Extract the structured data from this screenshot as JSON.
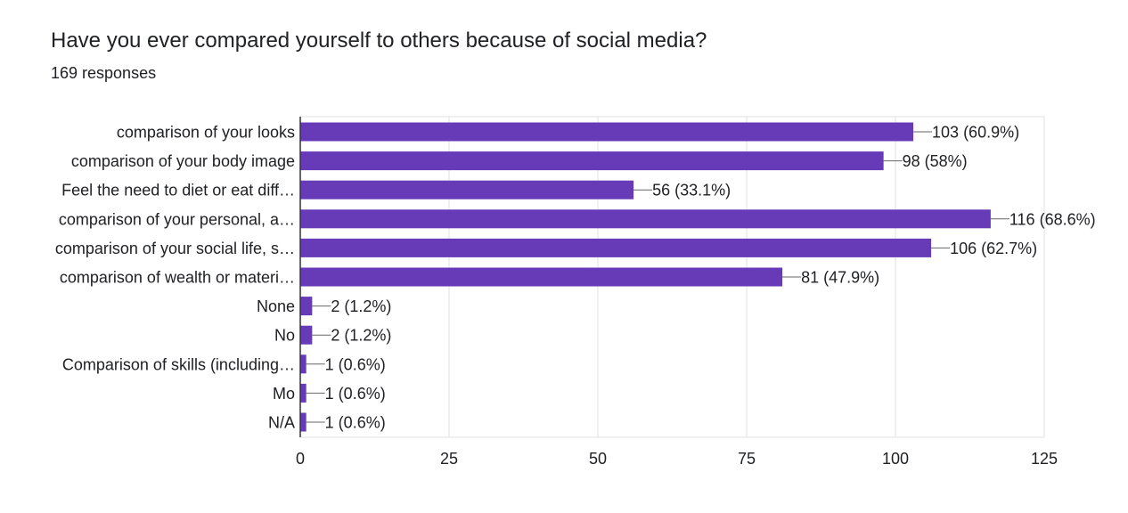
{
  "question": {
    "title": "Have you ever compared yourself to others because of social media?",
    "responses": "169 responses"
  },
  "colors": {
    "bar": "#673ab7",
    "grid": "#e0e0e0",
    "axis": "#333333",
    "connector": "#666666",
    "text": "#202124"
  },
  "chart_data": {
    "type": "bar",
    "orientation": "horizontal",
    "title": "Have you ever compared yourself to others because of social media?",
    "xlabel": "",
    "ylabel": "",
    "xlim": [
      0,
      125
    ],
    "xticks": [
      0,
      25,
      50,
      75,
      100,
      125
    ],
    "grid": true,
    "categories": [
      "comparison of your looks",
      "comparison of your body image",
      "Feel the need to diet or eat diff…",
      "comparison of your personal, a…",
      "comparison of your social life, s…",
      "comparison of wealth or materi…",
      "None",
      "No",
      "Comparison of skills (including…",
      "Mo",
      "N/A"
    ],
    "values": [
      103,
      98,
      56,
      116,
      106,
      81,
      2,
      2,
      1,
      1,
      1
    ],
    "data_labels": [
      "103 (60.9%)",
      "98 (58%)",
      "56 (33.1%)",
      "116 (68.6%)",
      "106 (62.7%)",
      "81 (47.9%)",
      "2 (1.2%)",
      "2 (1.2%)",
      "1 (0.6%)",
      "1 (0.6%)",
      "1 (0.6%)"
    ]
  }
}
